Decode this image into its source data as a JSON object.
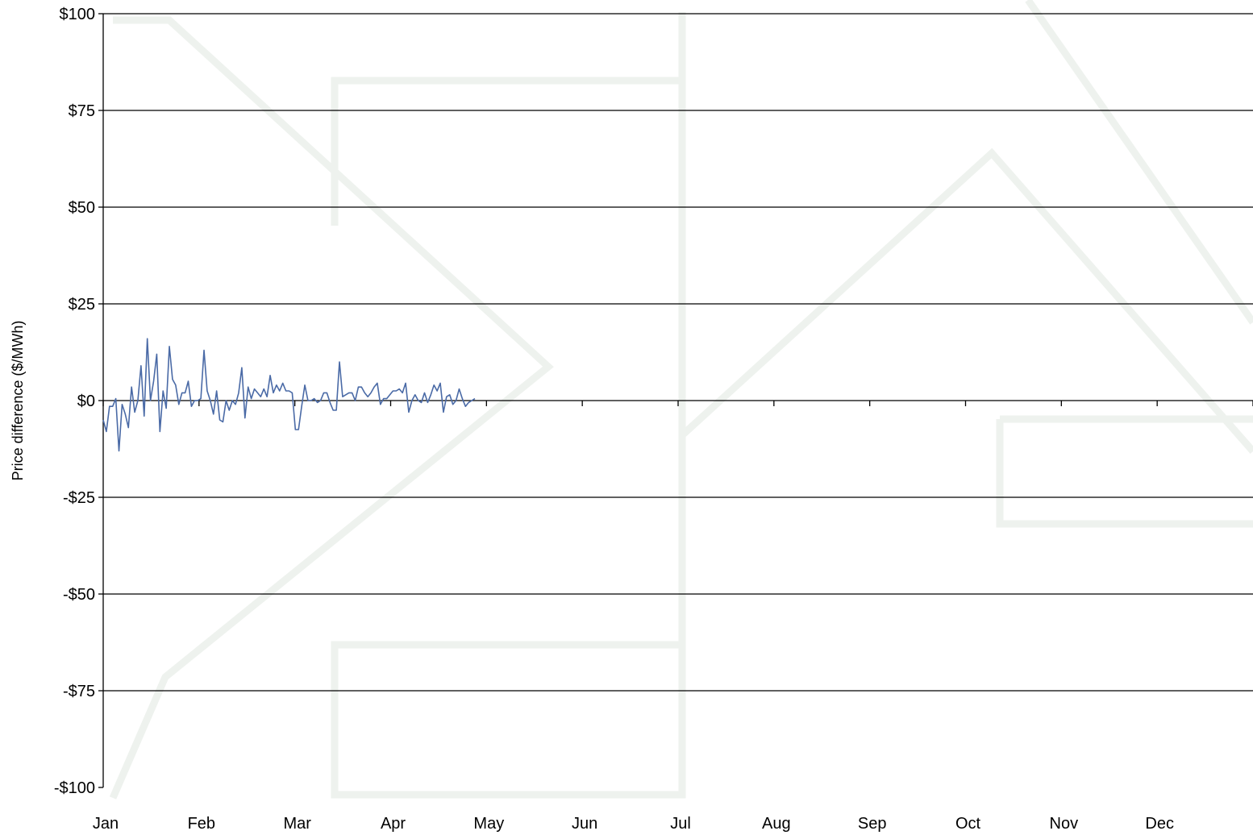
{
  "chart_data": {
    "type": "line",
    "title": "",
    "xlabel": "",
    "ylabel": "Price difference ($/MWh)",
    "ylim": [
      -100,
      100
    ],
    "y_ticks": [
      100,
      75,
      50,
      25,
      0,
      -25,
      -50,
      -75,
      -100
    ],
    "y_tick_labels": [
      "$100",
      "$75",
      "$50",
      "$25",
      "$0",
      "-$25",
      "-$50",
      "-$75",
      "-$100"
    ],
    "x_tick_labels": [
      "Jan",
      "Feb",
      "Mar",
      "Apr",
      "May",
      "Jun",
      "Jul",
      "Aug",
      "Sep",
      "Oct",
      "Nov",
      "Dec"
    ],
    "xlim_days": [
      0,
      365
    ],
    "grid": "horizontal",
    "legend": "none",
    "series_color": "#4a6aa6",
    "series": [
      {
        "values": [
          -5,
          -8,
          -1.5,
          -1.5,
          0.5,
          -13,
          -1,
          -3.5,
          -7,
          3.5,
          -3,
          0,
          9,
          -4,
          16,
          0,
          5,
          12,
          -8,
          2.5,
          -2,
          14,
          5.5,
          4,
          -1,
          2,
          2,
          5,
          -1.5,
          0,
          0,
          0.5,
          13,
          2.5,
          0,
          -3.5,
          2.5,
          -5,
          -5.5,
          0,
          -2.5,
          0,
          -1,
          2,
          8.5,
          -4.5,
          3.5,
          0.5,
          3,
          2,
          1,
          3,
          1,
          6.5,
          2,
          4,
          2.5,
          4.5,
          2.5,
          2.5,
          2,
          -7.5,
          -7.5,
          -1.5,
          4,
          0,
          0,
          0.5,
          -0.5,
          0,
          2,
          2,
          -0.5,
          -2.5,
          -2.5,
          10,
          1,
          1.5,
          2,
          2,
          0,
          3.5,
          3.5,
          2,
          1,
          2,
          3.5,
          4.5,
          -1,
          0.5,
          0.5,
          1.5,
          2.5,
          2.5,
          3,
          2,
          4.5,
          -3,
          0,
          1.5,
          0,
          -0.5,
          2,
          -0.5,
          1.5,
          4,
          2.5,
          4.5,
          -3,
          1,
          1.5,
          -1,
          0,
          3,
          0.5,
          -1.5,
          -0.5,
          0,
          0.5
        ]
      }
    ]
  }
}
